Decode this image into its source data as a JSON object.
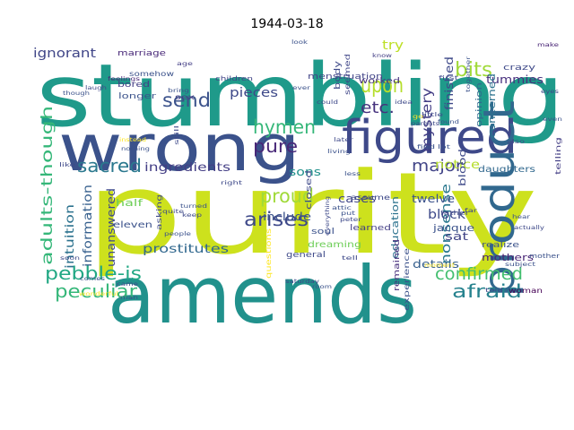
{
  "chart_data": {
    "type": "wordcloud",
    "title": "1944-03-18",
    "colormap": "viridis",
    "background": "#ffffff",
    "words": [
      {
        "text": "stumbling",
        "weight": 1.0,
        "color": "#1f9a8a"
      },
      {
        "text": "purity",
        "weight": 1.0,
        "color": "#cde11d"
      },
      {
        "text": "amends",
        "weight": 0.86,
        "color": "#21918c"
      },
      {
        "text": "wrong",
        "weight": 0.7,
        "color": "#3b528b"
      },
      {
        "text": "figured",
        "weight": 0.42,
        "color": "#3e4989"
      },
      {
        "text": "product",
        "weight": 0.4,
        "color": "#31688e"
      },
      {
        "text": "upon",
        "weight": 0.22,
        "color": "#b5de2b"
      },
      {
        "text": "send",
        "weight": 0.18,
        "color": "#3b528b"
      },
      {
        "text": "bits",
        "weight": 0.18,
        "color": "#a0da39"
      },
      {
        "text": "hymen",
        "weight": 0.17,
        "color": "#35b779"
      },
      {
        "text": "pure",
        "weight": 0.17,
        "color": "#482878"
      },
      {
        "text": "proud",
        "weight": 0.17,
        "color": "#a0da39"
      },
      {
        "text": "arises",
        "weight": 0.17,
        "color": "#3e4989"
      },
      {
        "text": "sacred",
        "weight": 0.16,
        "color": "#2a788e"
      },
      {
        "text": "peculiar",
        "weight": 0.16,
        "color": "#35b779"
      },
      {
        "text": "pebble-is",
        "weight": 0.15,
        "color": "#22a884"
      },
      {
        "text": "afraid",
        "weight": 0.16,
        "color": "#26828e"
      },
      {
        "text": "confirmed",
        "weight": 0.16,
        "color": "#44bf70"
      },
      {
        "text": "major",
        "weight": 0.15,
        "color": "#414487"
      },
      {
        "text": "adults-though",
        "weight": 0.14,
        "color": "#35b779"
      },
      {
        "text": "nonsense",
        "weight": 0.12,
        "color": "#2a788e"
      },
      {
        "text": "etc.",
        "weight": 0.12,
        "color": "#46327e"
      },
      {
        "text": "mystery",
        "weight": 0.11,
        "color": "#433e85"
      },
      {
        "text": "ignorant",
        "weight": 0.11,
        "color": "#404688"
      },
      {
        "text": "pieces",
        "weight": 0.11,
        "color": "#3e4989"
      },
      {
        "text": "ingredients",
        "weight": 0.11,
        "color": "#433e85"
      },
      {
        "text": "prostitutes",
        "weight": 0.11,
        "color": "#31688e"
      },
      {
        "text": "intuition",
        "weight": 0.1,
        "color": "#2c728e"
      },
      {
        "text": "information",
        "weight": 0.1,
        "color": "#355f8d"
      },
      {
        "text": "unanswered",
        "weight": 0.1,
        "color": "#3e4989"
      },
      {
        "text": "include",
        "weight": 0.1,
        "color": "#3b528b"
      },
      {
        "text": "block",
        "weight": 0.1,
        "color": "#3e4989"
      },
      {
        "text": "details",
        "weight": 0.1,
        "color": "#355f8d"
      },
      {
        "text": "notice",
        "weight": 0.1,
        "color": "#b5de2b"
      },
      {
        "text": "sons",
        "weight": 0.09,
        "color": "#21918c"
      },
      {
        "text": "cases",
        "weight": 0.09,
        "color": "#404688"
      },
      {
        "text": "education",
        "weight": 0.09,
        "color": "#2c728e"
      },
      {
        "text": "sat",
        "weight": 0.09,
        "color": "#414487"
      },
      {
        "text": "twelve",
        "weight": 0.09,
        "color": "#3b528b"
      },
      {
        "text": "jacque",
        "weight": 0.08,
        "color": "#3b528b"
      },
      {
        "text": "try",
        "weight": 0.09,
        "color": "#bddf26"
      },
      {
        "text": "finished",
        "weight": 0.08,
        "color": "#3e4989"
      },
      {
        "text": "tummies",
        "weight": 0.09,
        "color": "#472f7d"
      },
      {
        "text": "concerned",
        "weight": 0.08,
        "color": "#2c728e"
      },
      {
        "text": "mothers",
        "weight": 0.08,
        "color": "#482475"
      },
      {
        "text": "blood",
        "weight": 0.08,
        "color": "#3e4989"
      },
      {
        "text": "daughters",
        "weight": 0.08,
        "color": "#31688e"
      },
      {
        "text": "dreaming",
        "weight": 0.07,
        "color": "#6ece58"
      },
      {
        "text": "eleven",
        "weight": 0.07,
        "color": "#3b528b"
      },
      {
        "text": "half",
        "weight": 0.07,
        "color": "#6ece58"
      },
      {
        "text": "menstruation",
        "weight": 0.07,
        "color": "#414487"
      },
      {
        "text": "marriage",
        "weight": 0.07,
        "color": "#482878"
      },
      {
        "text": "worked",
        "weight": 0.07,
        "color": "#46327e"
      },
      {
        "text": "bored",
        "weight": 0.07,
        "color": "#433e85"
      },
      {
        "text": "longer",
        "weight": 0.07,
        "color": "#3b528b"
      },
      {
        "text": "body",
        "weight": 0.06,
        "color": "#3e4989"
      },
      {
        "text": "seemed",
        "weight": 0.06,
        "color": "#404688"
      },
      {
        "text": "experience",
        "weight": 0.06,
        "color": "#3b528b"
      },
      {
        "text": "opinion",
        "weight": 0.06,
        "color": "#31688e"
      },
      {
        "text": "closed",
        "weight": 0.06,
        "color": "#3e4989"
      },
      {
        "text": "soul",
        "weight": 0.06,
        "color": "#3b528b"
      },
      {
        "text": "general",
        "weight": 0.06,
        "color": "#3e4989"
      },
      {
        "text": "realize",
        "weight": 0.06,
        "color": "#3b528b"
      },
      {
        "text": "crazy",
        "weight": 0.06,
        "color": "#3e4989"
      },
      {
        "text": "remained",
        "weight": 0.06,
        "color": "#472f7d"
      },
      {
        "text": "learned",
        "weight": 0.06,
        "color": "#433e85"
      },
      {
        "text": "questions",
        "weight": 0.05,
        "color": "#fde725"
      },
      {
        "text": "asking",
        "weight": 0.05,
        "color": "#3e4989"
      },
      {
        "text": "somehow",
        "weight": 0.05,
        "color": "#3b528b"
      },
      {
        "text": "sex",
        "weight": 0.05,
        "color": "#433e85"
      },
      {
        "text": "assume",
        "weight": 0.05,
        "color": "#3e4989"
      },
      {
        "text": "telling",
        "weight": 0.05,
        "color": "#433e85"
      },
      {
        "text": "woman",
        "weight": 0.05,
        "color": "#440154"
      },
      {
        "text": "father",
        "weight": 0.04,
        "color": "#3e4989"
      },
      {
        "text": "mother",
        "weight": 0.04,
        "color": "#3b528b"
      },
      {
        "text": "children",
        "weight": 0.04,
        "color": "#414487"
      },
      {
        "text": "feelings",
        "weight": 0.04,
        "color": "#482878"
      },
      {
        "text": "age",
        "weight": 0.04,
        "color": "#433e85"
      },
      {
        "text": "make",
        "weight": 0.04,
        "color": "#482475"
      },
      {
        "text": "first",
        "weight": 0.04,
        "color": "#3e4989"
      },
      {
        "text": "know",
        "weight": 0.04,
        "color": "#433e85"
      },
      {
        "text": "look",
        "weight": 0.04,
        "color": "#3b528b"
      },
      {
        "text": "could",
        "weight": 0.04,
        "color": "#3e4989"
      },
      {
        "text": "ever",
        "weight": 0.04,
        "color": "#3b528b"
      },
      {
        "text": "idea",
        "weight": 0.04,
        "color": "#3e4989"
      },
      {
        "text": "found",
        "weight": 0.04,
        "color": "#3b528b"
      },
      {
        "text": "parents",
        "weight": 0.04,
        "color": "#3e4989"
      },
      {
        "text": "together",
        "weight": 0.04,
        "color": "#3b528b"
      },
      {
        "text": "eyes",
        "weight": 0.04,
        "color": "#3e4989"
      },
      {
        "text": "even",
        "weight": 0.04,
        "color": "#3b528b"
      },
      {
        "text": "also",
        "weight": 0.04,
        "color": "#3e4989"
      },
      {
        "text": "lot",
        "weight": 0.04,
        "color": "#3b528b"
      },
      {
        "text": "little",
        "weight": 0.04,
        "color": "#3e4989"
      },
      {
        "text": "bring",
        "weight": 0.04,
        "color": "#3b528b"
      },
      {
        "text": "laugh",
        "weight": 0.04,
        "color": "#3e4989"
      },
      {
        "text": "though",
        "weight": 0.04,
        "color": "#3b528b"
      },
      {
        "text": "still",
        "weight": 0.04,
        "color": "#3e4989"
      },
      {
        "text": "instead",
        "weight": 0.04,
        "color": "#fde725"
      },
      {
        "text": "nothing",
        "weight": 0.04,
        "color": "#3b528b"
      },
      {
        "text": "like",
        "weight": 0.04,
        "color": "#3e4989"
      },
      {
        "text": "living",
        "weight": 0.04,
        "color": "#3b528b"
      },
      {
        "text": "right",
        "weight": 0.04,
        "color": "#3e4989"
      },
      {
        "text": "attic",
        "weight": 0.04,
        "color": "#3b528b"
      },
      {
        "text": "keep",
        "weight": 0.04,
        "color": "#3e4989"
      },
      {
        "text": "turned",
        "weight": 0.04,
        "color": "#3b528b"
      },
      {
        "text": "quite",
        "weight": 0.04,
        "color": "#3e4989"
      },
      {
        "text": "people",
        "weight": 0.04,
        "color": "#3b528b"
      },
      {
        "text": "came",
        "weight": 0.04,
        "color": "#3e4989"
      },
      {
        "text": "comes",
        "weight": 0.04,
        "color": "#3b528b"
      },
      {
        "text": "soon",
        "weight": 0.04,
        "color": "#3e4989"
      },
      {
        "text": "man",
        "weight": 0.04,
        "color": "#3b528b"
      },
      {
        "text": "wonderful",
        "weight": 0.04,
        "color": "#fde725"
      },
      {
        "text": "saturday",
        "weight": 0.04,
        "color": "#3e4989"
      },
      {
        "text": "room",
        "weight": 0.04,
        "color": "#3b528b"
      },
      {
        "text": "tell",
        "weight": 0.04,
        "color": "#3e4989"
      },
      {
        "text": "put",
        "weight": 0.04,
        "color": "#3b528b"
      },
      {
        "text": "peter",
        "weight": 0.04,
        "color": "#3e4989"
      },
      {
        "text": "find",
        "weight": 0.04,
        "color": "#3b528b"
      },
      {
        "text": "far",
        "weight": 0.04,
        "color": "#3e4989"
      },
      {
        "text": "hear",
        "weight": 0.04,
        "color": "#3b528b"
      },
      {
        "text": "actually",
        "weight": 0.04,
        "color": "#3e4989"
      },
      {
        "text": "subject",
        "weight": 0.04,
        "color": "#3b528b"
      },
      {
        "text": "told",
        "weight": 0.04,
        "color": "#3e4989"
      },
      {
        "text": "moment",
        "weight": 0.04,
        "color": "#fde725"
      },
      {
        "text": "later",
        "weight": 0.04,
        "color": "#3e4989"
      },
      {
        "text": "less",
        "weight": 0.04,
        "color": "#3b528b"
      },
      {
        "text": "everything",
        "weight": 0.04,
        "color": "#3e4989"
      },
      {
        "text": "go",
        "weight": 0.04,
        "color": "#fde725"
      }
    ]
  }
}
